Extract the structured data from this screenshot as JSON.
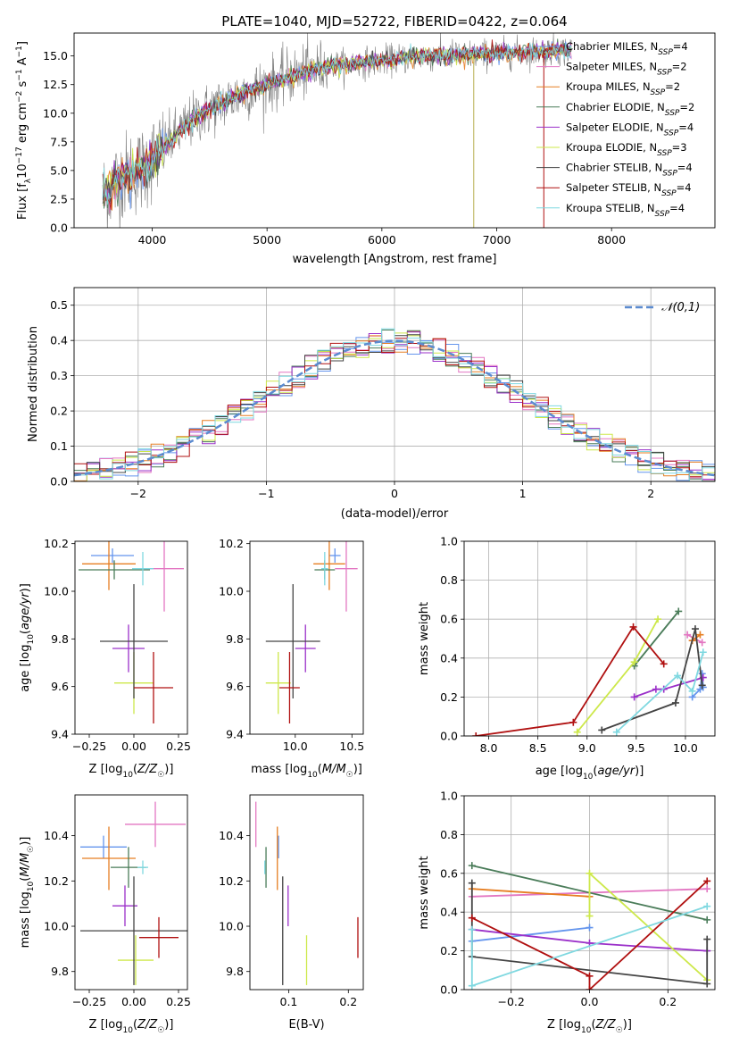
{
  "figure": {
    "title": "PLATE=1040, MJD=52722, FIBERID=0422, z=0.064"
  },
  "models": [
    {
      "name": "Chabrier MILES",
      "nssp": "4",
      "color": "#6495ed"
    },
    {
      "name": "Salpeter MILES",
      "nssp": "2",
      "color": "#e377c2"
    },
    {
      "name": "Kroupa MILES",
      "nssp": "2",
      "color": "#e67e22"
    },
    {
      "name": "Chabrier ELODIE",
      "nssp": "2",
      "color": "#4a7c59"
    },
    {
      "name": "Salpeter ELODIE",
      "nssp": "4",
      "color": "#9b30c9"
    },
    {
      "name": "Kroupa ELODIE",
      "nssp": "3",
      "color": "#cde84a"
    },
    {
      "name": "Chabrier STELIB",
      "nssp": "4",
      "color": "#444444"
    },
    {
      "name": "Salpeter STELIB",
      "nssp": "4",
      "color": "#b01010"
    },
    {
      "name": "Kroupa STELIB",
      "nssp": "4",
      "color": "#7fd8e0"
    }
  ],
  "chart_data": [
    {
      "id": "spectrum",
      "type": "line",
      "title": "PLATE=1040, MJD=52722, FIBERID=0422, z=0.064",
      "xlabel": "wavelength [Angstrom, rest frame]",
      "ylabel": "Flux [f_λ 10^-17 erg cm^-2 s^-1 A^-1]",
      "xlim": [
        3320,
        8900
      ],
      "ylim": [
        0,
        17.0
      ],
      "xticks": [
        4000,
        5000,
        6000,
        7000,
        8000
      ],
      "yticks": [
        0.0,
        2.5,
        5.0,
        7.5,
        10.0,
        12.5,
        15.0
      ],
      "legend": "top-right",
      "data_trend": {
        "wavelength": [
          3600,
          3700,
          3800,
          3900,
          4000,
          4200,
          4400,
          4600,
          4800,
          5000,
          5200,
          5400,
          5600,
          5800,
          6000,
          6200,
          6400,
          6600,
          6800,
          7000,
          7200,
          7400,
          7600
        ],
        "flux": [
          3.0,
          4.2,
          4.8,
          5.0,
          6.0,
          8.0,
          9.8,
          10.8,
          11.8,
          12.5,
          13.2,
          13.8,
          14.2,
          14.4,
          14.6,
          14.8,
          15.0,
          15.1,
          15.1,
          15.2,
          15.3,
          15.4,
          15.5
        ]
      },
      "series_names": [
        "Chabrier MILES",
        "Salpeter MILES",
        "Kroupa MILES",
        "Chabrier ELODIE",
        "Salpeter ELODIE",
        "Kroupa ELODIE",
        "Chabrier STELIB",
        "Salpeter STELIB",
        "Kroupa STELIB"
      ]
    },
    {
      "id": "residual_histogram",
      "type": "histogram",
      "xlabel": "(data-model)/error",
      "ylabel": "Normed distribution",
      "xlim": [
        -2.5,
        2.5
      ],
      "ylim": [
        0,
        0.55
      ],
      "xticks": [
        -2,
        -1,
        0,
        1,
        2
      ],
      "yticks": [
        0.0,
        0.1,
        0.2,
        0.3,
        0.4,
        0.5
      ],
      "grid": true,
      "reference_curve": {
        "name": "𝒩(0,1)",
        "style": "dashed",
        "color": "#5b8bd0"
      },
      "legend": "top-right"
    },
    {
      "id": "age_vs_Z",
      "type": "errorbar",
      "xlabel": "Z [log10(Z/Z☉)]",
      "ylabel": "age  [log10(age/yr)]",
      "xlim": [
        -0.33,
        0.3
      ],
      "ylim": [
        9.4,
        10.21
      ],
      "xticks": [
        -0.25,
        0.0,
        0.25
      ],
      "yticks": [
        9.4,
        9.6,
        9.8,
        10.0,
        10.2
      ],
      "points": [
        {
          "model": "Chabrier MILES",
          "x": -0.12,
          "xerr": 0.12,
          "y": 10.15,
          "yerr": 0.03
        },
        {
          "model": "Salpeter MILES",
          "x": 0.17,
          "xerr": 0.11,
          "y": 10.095,
          "yerr": 0.18
        },
        {
          "model": "Kroupa MILES",
          "x": -0.14,
          "xerr": 0.15,
          "y": 10.115,
          "yerr": 0.11
        },
        {
          "model": "Chabrier ELODIE",
          "x": -0.11,
          "xerr": 0.2,
          "y": 10.09,
          "yerr": 0.04
        },
        {
          "model": "Salpeter ELODIE",
          "x": -0.03,
          "xerr": 0.09,
          "y": 9.76,
          "yerr": 0.1
        },
        {
          "model": "Kroupa ELODIE",
          "x": 0.0,
          "xerr": 0.11,
          "y": 9.615,
          "yerr": 0.13
        },
        {
          "model": "Chabrier STELIB",
          "x": 0.0,
          "xerr": 0.19,
          "y": 9.79,
          "yerr": 0.24
        },
        {
          "model": "Salpeter STELIB",
          "x": 0.11,
          "xerr": 0.11,
          "y": 9.595,
          "yerr": 0.15
        },
        {
          "model": "Kroupa STELIB",
          "x": 0.05,
          "xerr": 0.06,
          "y": 10.095,
          "yerr": 0.07
        }
      ]
    },
    {
      "id": "age_vs_mass",
      "type": "errorbar",
      "xlabel": "mass [log10(M/M☉)]",
      "ylabel": "",
      "xlim": [
        9.6,
        10.6
      ],
      "ylim": [
        9.4,
        10.21
      ],
      "xticks": [
        10.0,
        10.5
      ],
      "yticks": [
        9.4,
        9.6,
        9.8,
        10.0,
        10.2
      ],
      "points": [
        {
          "model": "Chabrier MILES",
          "x": 10.35,
          "xerr": 0.05,
          "y": 10.15,
          "yerr": 0.03
        },
        {
          "model": "Salpeter MILES",
          "x": 10.45,
          "xerr": 0.1,
          "y": 10.095,
          "yerr": 0.18
        },
        {
          "model": "Kroupa MILES",
          "x": 10.3,
          "xerr": 0.14,
          "y": 10.115,
          "yerr": 0.11
        },
        {
          "model": "Chabrier ELODIE",
          "x": 10.26,
          "xerr": 0.09,
          "y": 10.09,
          "yerr": 0.04
        },
        {
          "model": "Salpeter ELODIE",
          "x": 10.09,
          "xerr": 0.09,
          "y": 9.76,
          "yerr": 0.1
        },
        {
          "model": "Kroupa ELODIE",
          "x": 9.85,
          "xerr": 0.11,
          "y": 9.615,
          "yerr": 0.13
        },
        {
          "model": "Chabrier STELIB",
          "x": 9.98,
          "xerr": 0.24,
          "y": 9.79,
          "yerr": 0.24
        },
        {
          "model": "Salpeter STELIB",
          "x": 9.95,
          "xerr": 0.09,
          "y": 9.595,
          "yerr": 0.15
        },
        {
          "model": "Kroupa STELIB",
          "x": 10.26,
          "xerr": 0.03,
          "y": 10.095,
          "yerr": 0.07
        }
      ]
    },
    {
      "id": "weight_vs_age",
      "type": "line",
      "xlabel": "age  [log10(age/yr)]",
      "ylabel": "mass weight",
      "xlim": [
        7.75,
        10.3
      ],
      "ylim": [
        0,
        1.0
      ],
      "xticks": [
        8.0,
        8.5,
        9.0,
        9.5,
        10.0
      ],
      "yticks": [
        0.0,
        0.2,
        0.4,
        0.6,
        0.8,
        1.0
      ],
      "grid": true,
      "series": [
        {
          "name": "Chabrier MILES",
          "x": [
            10.07,
            10.15,
            10.17,
            10.18
          ],
          "y": [
            0.2,
            0.24,
            0.32,
            0.25
          ]
        },
        {
          "name": "Salpeter MILES",
          "x": [
            10.02,
            10.17
          ],
          "y": [
            0.52,
            0.48
          ]
        },
        {
          "name": "Kroupa MILES",
          "x": [
            10.07,
            10.15
          ],
          "y": [
            0.49,
            0.52
          ]
        },
        {
          "name": "Chabrier ELODIE",
          "x": [
            9.48,
            9.93
          ],
          "y": [
            0.36,
            0.64
          ]
        },
        {
          "name": "Salpeter ELODIE",
          "x": [
            9.48,
            9.7,
            9.78,
            10.18
          ],
          "y": [
            0.2,
            0.24,
            0.24,
            0.3
          ]
        },
        {
          "name": "Kroupa ELODIE",
          "x": [
            8.9,
            9.48,
            9.72
          ],
          "y": [
            0.02,
            0.38,
            0.6
          ]
        },
        {
          "name": "Chabrier STELIB",
          "x": [
            9.15,
            9.9,
            10.1,
            10.17
          ],
          "y": [
            0.03,
            0.17,
            0.55,
            0.26
          ]
        },
        {
          "name": "Salpeter STELIB",
          "x": [
            7.87,
            8.86,
            9.47,
            9.78
          ],
          "y": [
            0.0,
            0.07,
            0.56,
            0.37
          ]
        },
        {
          "name": "Kroupa STELIB",
          "x": [
            9.3,
            9.92,
            10.07,
            10.18
          ],
          "y": [
            0.02,
            0.31,
            0.23,
            0.43
          ]
        }
      ]
    },
    {
      "id": "mass_vs_Z",
      "type": "errorbar",
      "xlabel": "Z [log10(Z/Z☉)]",
      "ylabel": "mass [log10(M/M☉)]",
      "xlim": [
        -0.33,
        0.3
      ],
      "ylim": [
        9.72,
        10.58
      ],
      "xticks": [
        -0.25,
        0.0,
        0.25
      ],
      "yticks": [
        9.8,
        10.0,
        10.2,
        10.4
      ],
      "points": [
        {
          "model": "Chabrier MILES",
          "x": -0.17,
          "xerr": 0.13,
          "y": 10.35,
          "yerr": 0.05
        },
        {
          "model": "Salpeter MILES",
          "x": 0.12,
          "xerr": 0.17,
          "y": 10.45,
          "yerr": 0.1
        },
        {
          "model": "Kroupa MILES",
          "x": -0.14,
          "xerr": 0.15,
          "y": 10.3,
          "yerr": 0.14
        },
        {
          "model": "Chabrier ELODIE",
          "x": -0.03,
          "xerr": 0.1,
          "y": 10.26,
          "yerr": 0.09
        },
        {
          "model": "Salpeter ELODIE",
          "x": -0.05,
          "xerr": 0.07,
          "y": 10.09,
          "yerr": 0.09
        },
        {
          "model": "Kroupa ELODIE",
          "x": 0.01,
          "xerr": 0.1,
          "y": 9.85,
          "yerr": 0.11
        },
        {
          "model": "Chabrier STELIB",
          "x": 0.0,
          "xerr": 0.3,
          "y": 9.98,
          "yerr": 0.24
        },
        {
          "model": "Salpeter STELIB",
          "x": 0.14,
          "xerr": 0.11,
          "y": 9.95,
          "yerr": 0.09
        },
        {
          "model": "Kroupa STELIB",
          "x": 0.05,
          "xerr": 0.03,
          "y": 10.26,
          "yerr": 0.03
        }
      ]
    },
    {
      "id": "mass_vs_EBV",
      "type": "errorbar",
      "xlabel": "E(B-V)",
      "ylabel": "",
      "xlim": [
        0.035,
        0.225
      ],
      "ylim": [
        9.72,
        10.58
      ],
      "xticks": [
        0.1,
        0.2
      ],
      "yticks": [
        9.8,
        10.0,
        10.2,
        10.4
      ],
      "points": [
        {
          "model": "Chabrier MILES",
          "x": 0.083,
          "y": 10.35,
          "yerr": 0.05
        },
        {
          "model": "Salpeter MILES",
          "x": 0.045,
          "y": 10.45,
          "yerr": 0.1
        },
        {
          "model": "Kroupa MILES",
          "x": 0.081,
          "y": 10.3,
          "yerr": 0.14
        },
        {
          "model": "Chabrier ELODIE",
          "x": 0.062,
          "y": 10.26,
          "yerr": 0.09
        },
        {
          "model": "Salpeter ELODIE",
          "x": 0.099,
          "y": 10.09,
          "yerr": 0.09
        },
        {
          "model": "Kroupa ELODIE",
          "x": 0.13,
          "y": 9.85,
          "yerr": 0.11
        },
        {
          "model": "Chabrier STELIB",
          "x": 0.09,
          "y": 9.98,
          "yerr": 0.24
        },
        {
          "model": "Salpeter STELIB",
          "x": 0.216,
          "y": 9.95,
          "yerr": 0.09
        },
        {
          "model": "Kroupa STELIB",
          "x": 0.06,
          "y": 10.26,
          "yerr": 0.03
        }
      ]
    },
    {
      "id": "weight_vs_Z",
      "type": "line",
      "xlabel": "Z [log10(Z/Z☉)]",
      "ylabel": "mass weight",
      "xlim": [
        -0.32,
        0.32
      ],
      "ylim": [
        0,
        1.0
      ],
      "xticks": [
        -0.2,
        0.0,
        0.2
      ],
      "yticks": [
        0.0,
        0.2,
        0.4,
        0.6,
        0.8,
        1.0
      ],
      "grid": true,
      "series": [
        {
          "name": "Chabrier MILES",
          "x": [
            -0.3,
            0.0
          ],
          "y": [
            0.25,
            0.32
          ]
        },
        {
          "name": "Salpeter MILES",
          "x": [
            -0.3,
            0.3
          ],
          "y": [
            0.48,
            0.52
          ]
        },
        {
          "name": "Kroupa MILES",
          "x": [
            -0.3,
            0.0
          ],
          "y": [
            0.52,
            0.48
          ]
        },
        {
          "name": "Chabrier ELODIE",
          "x": [
            -0.3,
            0.3
          ],
          "y": [
            0.64,
            0.36
          ]
        },
        {
          "name": "Salpeter ELODIE",
          "x": [
            -0.3,
            0.0,
            0.3
          ],
          "y": [
            0.31,
            0.24,
            0.2
          ]
        },
        {
          "name": "Kroupa ELODIE",
          "x": [
            0.0,
            0.0,
            0.3
          ],
          "y": [
            0.38,
            0.6,
            0.05
          ]
        },
        {
          "name": "Chabrier STELIB",
          "x": [
            -0.3,
            -0.3,
            0.3,
            0.3
          ],
          "y": [
            0.55,
            0.17,
            0.03,
            0.26
          ]
        },
        {
          "name": "Salpeter STELIB",
          "x": [
            -0.3,
            0.0,
            0.0,
            0.3
          ],
          "y": [
            0.37,
            0.07,
            0.0,
            0.56
          ]
        },
        {
          "name": "Kroupa STELIB",
          "x": [
            -0.3,
            -0.3,
            0.3
          ],
          "y": [
            0.31,
            0.02,
            0.43
          ]
        }
      ]
    }
  ]
}
